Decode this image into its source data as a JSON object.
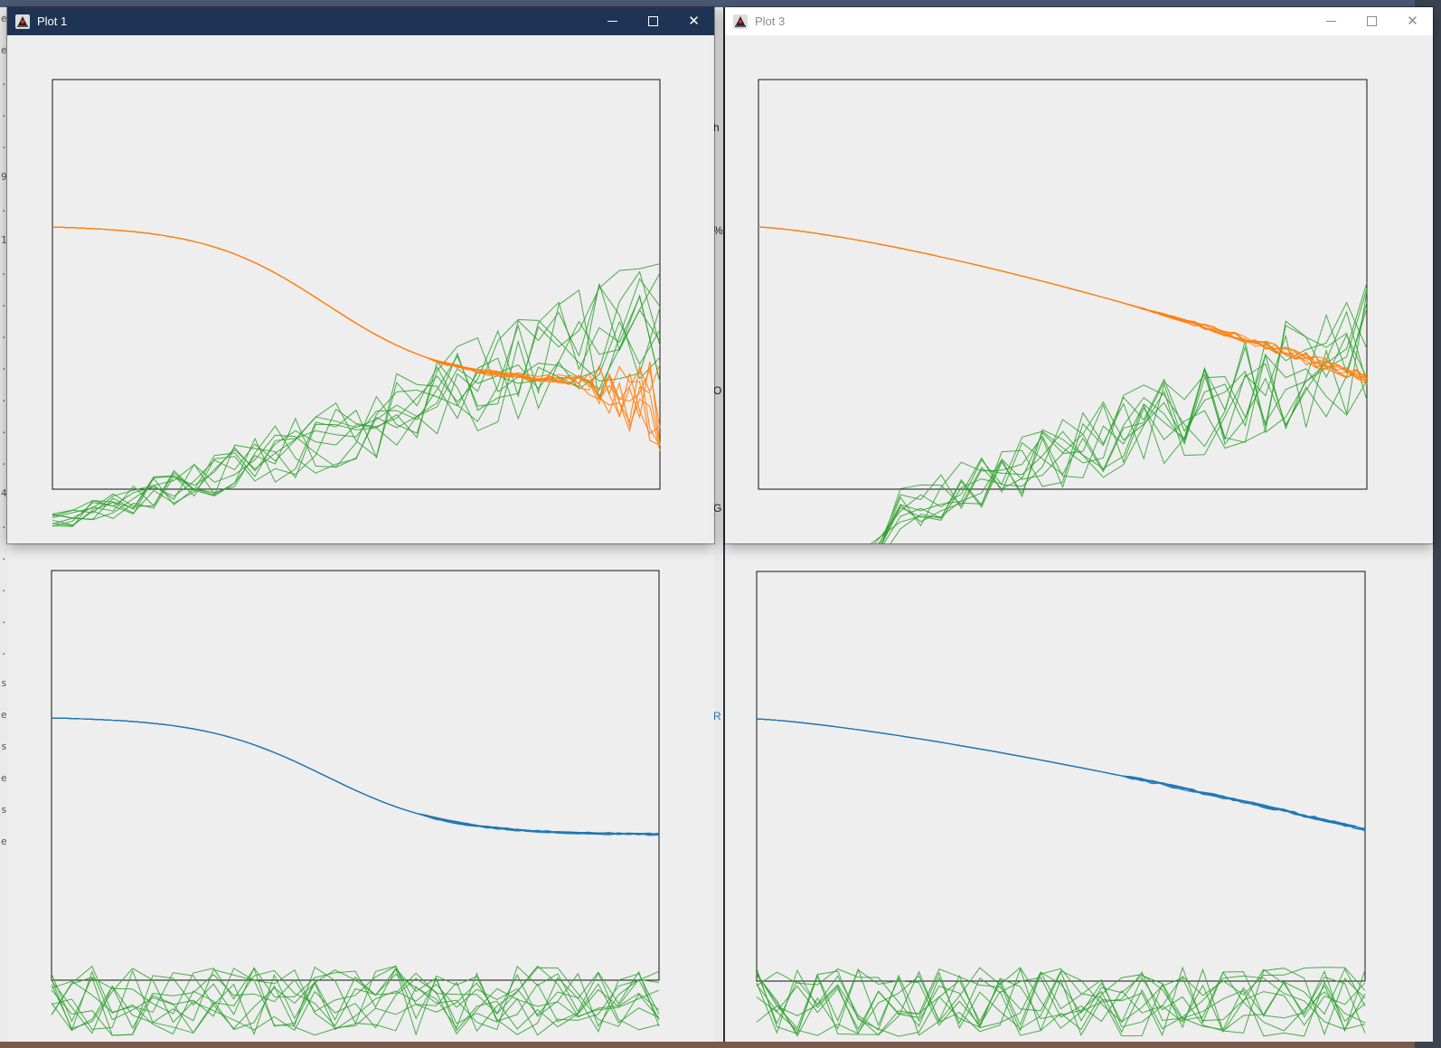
{
  "windows": [
    {
      "id": "plot1",
      "title": "Plot 1",
      "active": true
    },
    {
      "id": "plot3",
      "title": "Plot 3",
      "active": false
    }
  ],
  "background_text": {
    "left_fragments": [
      "e",
      "e",
      ".",
      ".",
      ".",
      "9",
      ".",
      "1",
      ".",
      ".",
      ".",
      ".",
      ".",
      ".",
      ".",
      "4",
      ".",
      ".",
      ".",
      ".",
      ".",
      "s",
      "e",
      "s",
      "e",
      "s",
      "e"
    ],
    "middle_fragments": [
      "h",
      "%)",
      "O",
      "G",
      "R"
    ]
  },
  "colors": {
    "primary_orange": "#ff7f0e",
    "primary_blue": "#1f77b4",
    "secondary_green": "#2ca02c",
    "active_titlebar": "#1f3454",
    "plot_background": "#eeeeee"
  },
  "icons": {
    "app": "java-duke-icon",
    "minimize": "minimize-icon",
    "maximize": "maximize-icon",
    "close": "close-icon"
  },
  "plots": [
    {
      "id": "plot1",
      "curve_color": "#ff7f0e",
      "curve_shape": "sigmoid",
      "green_trend": "rising"
    },
    {
      "id": "plot3",
      "curve_color": "#ff7f0e",
      "curve_shape": "gradual",
      "green_trend": "rising"
    },
    {
      "id": "plot2",
      "curve_color": "#1f77b4",
      "curve_shape": "sigmoid",
      "green_trend": "flat"
    },
    {
      "id": "plot4",
      "curve_color": "#1f77b4",
      "curve_shape": "gradual",
      "green_trend": "flat"
    }
  ]
}
